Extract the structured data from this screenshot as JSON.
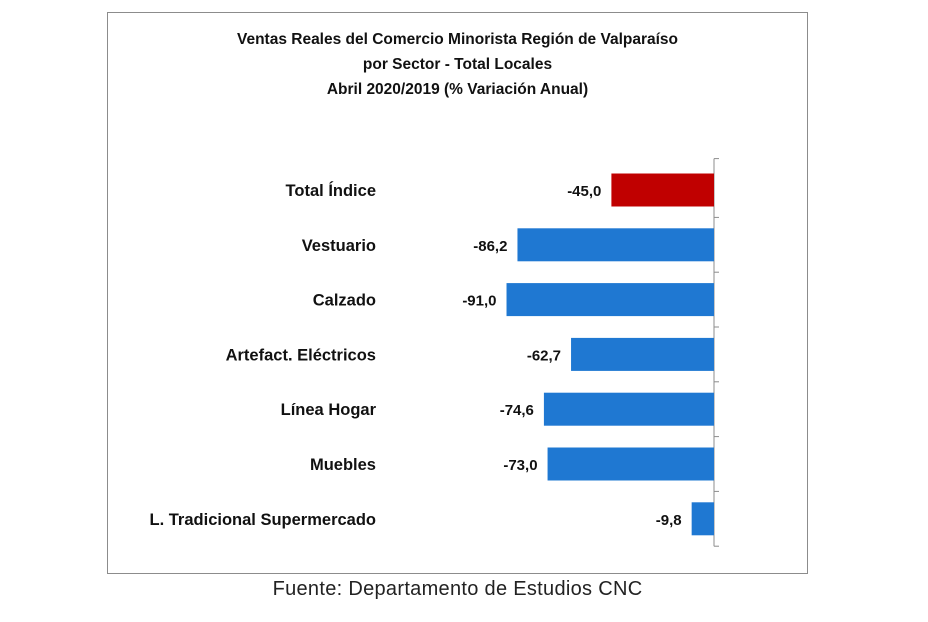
{
  "chart_data": {
    "type": "bar",
    "orientation": "horizontal",
    "title": "Ventas Reales del Comercio Minorista Región de Valparaíso",
    "subtitle_lines": [
      "por Sector - Total Locales",
      "Abril 2020/2019 (% Variación Anual)"
    ],
    "categories": [
      "Total Índice",
      "Vestuario",
      "Calzado",
      "Artefact. Eléctricos",
      "Línea Hogar",
      "Muebles",
      "L. Tradicional Supermercado"
    ],
    "values": [
      -45.0,
      -86.2,
      -91.0,
      -62.7,
      -74.6,
      -73.0,
      -9.8
    ],
    "value_labels": [
      "-45,0",
      "-86,2",
      "-91,0",
      "-62,7",
      "-74,6",
      "-73,0",
      "-9,8"
    ],
    "bar_colors": [
      "#c00000",
      "#1f78d2",
      "#1f78d2",
      "#1f78d2",
      "#1f78d2",
      "#1f78d2",
      "#1f78d2"
    ],
    "xlabel": "",
    "ylabel": "",
    "xlim": [
      -100,
      0
    ],
    "grid": false,
    "legend": "none"
  },
  "source": "Fuente: Departamento de Estudios CNC"
}
